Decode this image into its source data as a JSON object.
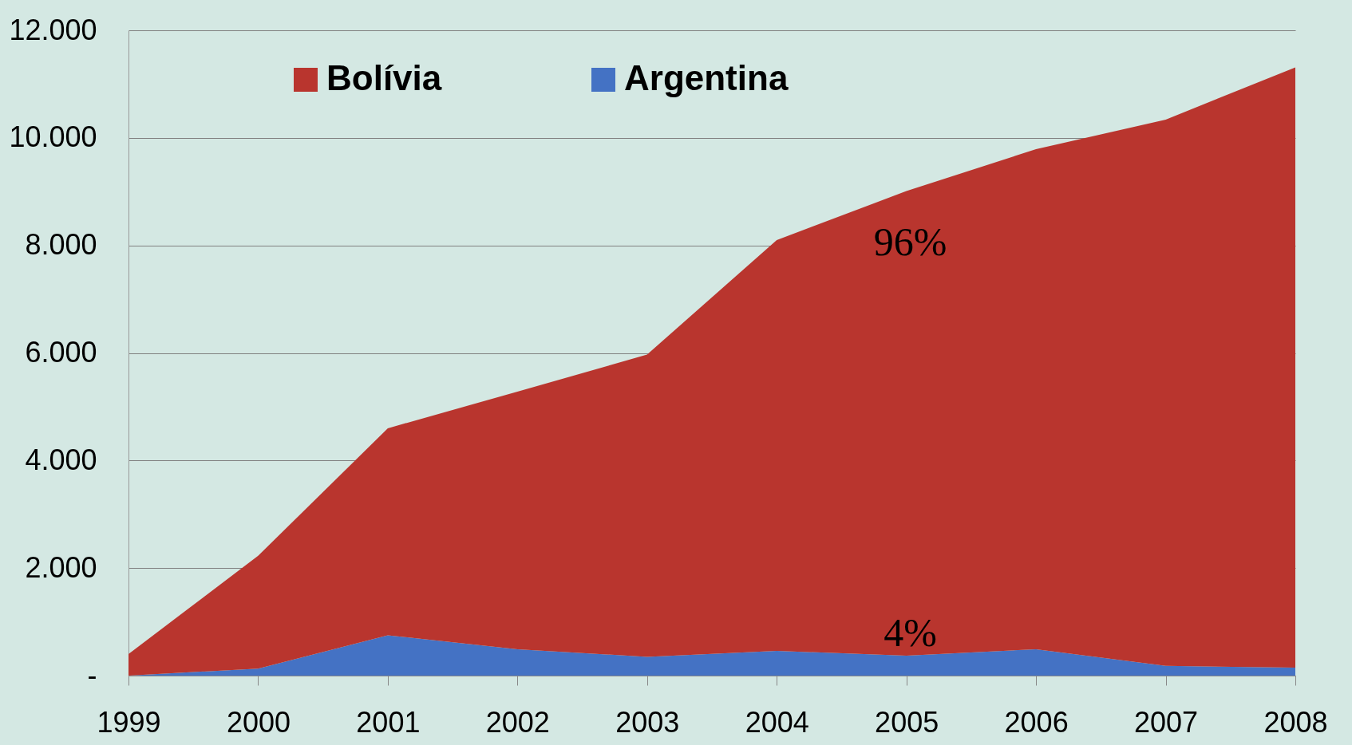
{
  "chart_data": {
    "type": "area",
    "stacked": true,
    "x": [
      1999,
      2000,
      2001,
      2002,
      2003,
      2004,
      2005,
      2006,
      2007,
      2008
    ],
    "series": [
      {
        "name": "Argentina",
        "color": "#4472c4",
        "values": [
          0,
          130,
          750,
          490,
          350,
          460,
          370,
          490,
          180,
          150
        ]
      },
      {
        "name": "Bolívia",
        "color": "#b9352e",
        "values": [
          400,
          2100,
          3850,
          4790,
          5620,
          7640,
          8640,
          9300,
          10160,
          11160
        ]
      }
    ],
    "xlim": [
      1999,
      2008
    ],
    "xticks": [
      1999,
      2000,
      2001,
      2002,
      2003,
      2004,
      2005,
      2006,
      2007,
      2008
    ],
    "ylim": [
      0,
      12000
    ],
    "yticks": [
      {
        "value": 0,
        "label": "-"
      },
      {
        "value": 2000,
        "label": "2.000"
      },
      {
        "value": 4000,
        "label": "4.000"
      },
      {
        "value": 6000,
        "label": "6.000"
      },
      {
        "value": 8000,
        "label": "8.000"
      },
      {
        "value": 10000,
        "label": "10.000"
      },
      {
        "value": 12000,
        "label": "12.000"
      }
    ],
    "grid": "y",
    "legend": "top",
    "annotations": [
      "96%",
      "4%"
    ]
  }
}
